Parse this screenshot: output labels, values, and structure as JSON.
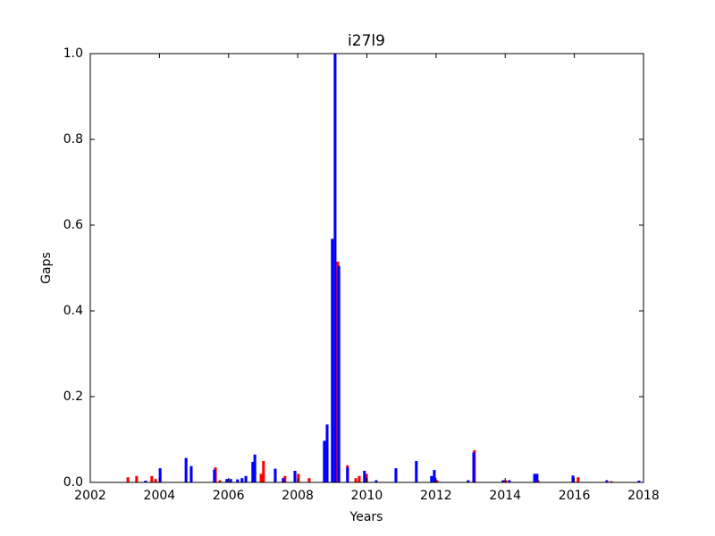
{
  "chart_data": {
    "type": "bar",
    "title": "i27l9",
    "xlabel": "Years",
    "ylabel": "Gaps",
    "xlim": [
      2002,
      2018
    ],
    "xticks": [
      2002,
      2004,
      2006,
      2008,
      2010,
      2012,
      2014,
      2016,
      2018
    ],
    "ylim": [
      0,
      1
    ],
    "yticks": [
      {
        "value": 0,
        "label": "0.0"
      },
      0.2,
      0.4,
      0.6,
      0.8,
      {
        "value": 1,
        "label": "1.0"
      }
    ],
    "series": [
      {
        "color": "#ff0000",
        "x": [
          2003.09,
          2003.34,
          2003.78,
          2003.89,
          2005.62,
          2005.75,
          2006.94,
          2007.01,
          2007.63,
          2008.02,
          2008.33,
          2009.16,
          2009.44,
          2009.68,
          2009.78,
          2009.99,
          2012.03,
          2013.11,
          2014.02,
          2014.95,
          2016.11,
          2017.07
        ],
        "values": [
          0.012,
          0.015,
          0.015,
          0.008,
          0.035,
          0.005,
          0.02,
          0.05,
          0.015,
          0.02,
          0.01,
          0.515,
          0.04,
          0.01,
          0.015,
          0.02,
          0.005,
          0.075,
          0.005,
          0.005,
          0.012,
          0.003
        ]
      },
      {
        "color": "#0000ff",
        "x": [
          2003.6,
          2004.02,
          2004.77,
          2004.92,
          2005.59,
          2005.95,
          2006.06,
          2006.26,
          2006.39,
          2006.5,
          2006.7,
          2006.76,
          2007.35,
          2007.58,
          2007.92,
          2008.77,
          2008.85,
          2009.0,
          2009.08,
          2009.19,
          2009.44,
          2009.93,
          2010.27,
          2010.84,
          2011.43,
          2011.87,
          2011.95,
          2012.93,
          2013.09,
          2013.94,
          2014.12,
          2014.85,
          2014.92,
          2015.96,
          2016.94,
          2017.87
        ],
        "values": [
          0.004,
          0.033,
          0.057,
          0.038,
          0.03,
          0.008,
          0.008,
          0.007,
          0.01,
          0.015,
          0.048,
          0.065,
          0.032,
          0.01,
          0.027,
          0.097,
          0.135,
          0.568,
          1.0,
          0.505,
          0.035,
          0.027,
          0.005,
          0.033,
          0.05,
          0.015,
          0.029,
          0.005,
          0.07,
          0.005,
          0.005,
          0.02,
          0.02,
          0.016,
          0.005,
          0.004
        ]
      }
    ]
  }
}
